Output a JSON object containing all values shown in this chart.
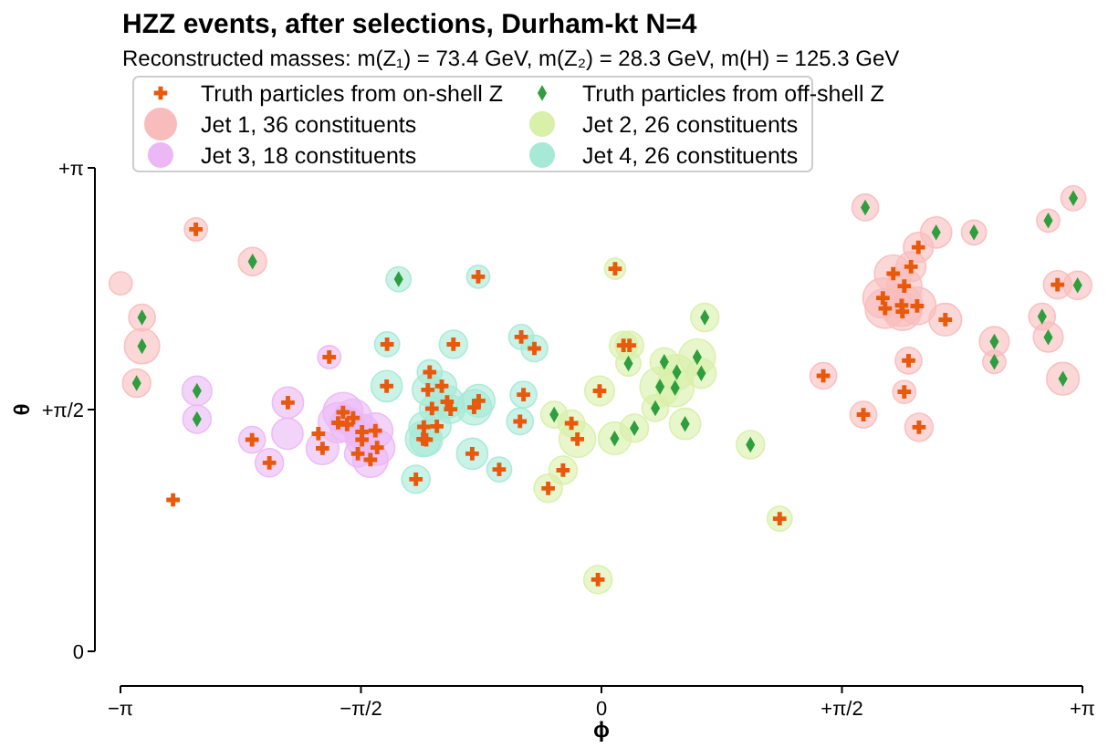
{
  "chart_data": {
    "type": "bubble",
    "title": "HZZ events, after selections, Durham-kt N=4",
    "subtitle": "Reconstructed masses: m(Z₁) = 73.4 GeV, m(Z₂) = 28.3 GeV, m(H) = 125.3 GeV",
    "xlabel": "ϕ",
    "ylabel": "θ",
    "xlim": [
      -3.1416,
      3.1416
    ],
    "ylim": [
      0,
      3.1416
    ],
    "xticks": [
      {
        "value": -3.1416,
        "label": "−π"
      },
      {
        "value": -1.5708,
        "label": "−π/2"
      },
      0,
      {
        "value": 1.5708,
        "label": "+π/2"
      },
      {
        "value": 3.1416,
        "label": "+π"
      }
    ],
    "yticks": [
      0,
      {
        "value": 1.5708,
        "label": "+π/2"
      },
      {
        "value": 3.1416,
        "label": "+π"
      }
    ],
    "legend": "top left",
    "grid": false,
    "series": [
      {
        "name": "Truth particles from on-shell Z",
        "type": "scatter",
        "marker": "cross",
        "color": "#e8590c",
        "x": [
          -2.649,
          1.449,
          1.711,
          2.07,
          2.022,
          1.906,
          1.978,
          1.838,
          1.853,
          1.961,
          2.062,
          1.966,
          2.246,
          2.006,
          1.978,
          2.074,
          2.979,
          0.089,
          0.144,
          0.183,
          -0.012,
          -0.196,
          -0.157,
          -0.251,
          -0.348,
          -0.023,
          1.164,
          -1.778,
          -2.048,
          -2.282,
          -2.169,
          -1.822,
          -1.688,
          -1.72,
          -1.622,
          -1.661,
          -1.564,
          -1.477,
          -1.564,
          -1.465,
          -1.591,
          -1.509,
          -0.805,
          -1.4,
          -0.967,
          -0.524,
          -0.438,
          -1.403,
          -1.122,
          -1.134,
          -1.043,
          -1.107,
          -1.008,
          -0.985,
          -0.832,
          -0.802,
          -0.509,
          -0.532,
          -1.16,
          -1.075,
          -1.165,
          -1.145,
          -0.844,
          -0.668,
          -1.212,
          -2.798,
          -1.849
        ],
        "values": [
          2.742,
          1.79,
          1.538,
          2.625,
          2.499,
          2.454,
          2.373,
          2.296,
          2.228,
          2.248,
          2.244,
          2.207,
          2.155,
          1.889,
          1.686,
          1.456,
          2.382,
          2.486,
          1.988,
          1.988,
          1.692,
          1.482,
          1.379,
          1.177,
          1.059,
          0.466,
          0.862,
          1.912,
          1.616,
          1.375,
          1.225,
          1.319,
          1.553,
          1.485,
          1.517,
          1.474,
          1.426,
          1.434,
          1.375,
          1.324,
          1.284,
          1.245,
          2.434,
          1.995,
          1.995,
          2.043,
          1.968,
          1.723,
          1.814,
          1.699,
          1.723,
          1.577,
          1.621,
          1.573,
          1.585,
          1.628,
          1.668,
          1.494,
          1.458,
          1.462,
          1.379,
          1.375,
          1.284,
          1.182,
          1.118,
          0.984,
          1.414
        ]
      },
      {
        "name": "Truth particles from off-shell Z",
        "type": "scatter",
        "marker": "diamond",
        "color": "#2e9e3e",
        "x": [
          -2.279,
          -3.001,
          -3.001,
          -3.036,
          1.723,
          2.186,
          2.433,
          2.566,
          2.566,
          3.082,
          2.918,
          3.11,
          2.878,
          2.918,
          3.014,
          0.176,
          0.675,
          -0.309,
          0.086,
          0.215,
          0.41,
          0.492,
          0.382,
          0.481,
          0.625,
          0.652,
          0.352,
          0.546,
          0.973,
          -2.642,
          -2.642,
          -1.325
        ],
        "values": [
          2.533,
          2.169,
          1.983,
          1.743,
          2.884,
          2.722,
          2.722,
          2.013,
          1.88,
          2.944,
          2.799,
          2.378,
          2.175,
          2.041,
          1.771,
          1.87,
          2.169,
          1.538,
          1.383,
          1.45,
          1.881,
          1.814,
          1.719,
          1.711,
          1.912,
          1.806,
          1.58,
          1.478,
          1.343,
          1.692,
          1.509,
          2.418
        ]
      },
      {
        "name": "Jet 1, 36 constituents",
        "color": "#f9bcbc",
        "x": [
          -2.649,
          -2.279,
          -3.14,
          -3.001,
          -3.001,
          -3.036,
          1.723,
          1.449,
          1.711,
          2.186,
          2.433,
          2.07,
          2.022,
          1.906,
          1.978,
          1.838,
          1.853,
          1.961,
          2.062,
          1.966,
          2.246,
          2.566,
          2.566,
          2.006,
          1.978,
          2.074,
          3.082,
          2.918,
          2.979,
          3.11,
          2.878,
          2.918,
          3.014
        ],
        "values": [
          2.742,
          2.533,
          2.391,
          2.169,
          1.983,
          1.743,
          2.884,
          1.79,
          1.538,
          2.722,
          2.722,
          2.625,
          2.499,
          2.454,
          2.373,
          2.296,
          2.228,
          2.248,
          2.244,
          2.207,
          2.155,
          2.013,
          1.88,
          1.889,
          1.686,
          1.456,
          2.944,
          2.799,
          2.382,
          2.378,
          2.175,
          2.041,
          1.771
        ],
        "sizes": [
          0.3,
          0.45,
          0.3,
          0.4,
          0.7,
          0.45,
          0.4,
          0.4,
          0.4,
          0.55,
          0.35,
          0.5,
          0.5,
          0.8,
          0.7,
          0.9,
          0.9,
          1,
          0.8,
          0.8,
          0.6,
          0.5,
          0.3,
          0.4,
          0.3,
          0.45,
          0.35,
          0.3,
          0.45,
          0.45,
          0.4,
          0.5,
          0.6
        ]
      },
      {
        "name": "Jet 2, 26 constituents",
        "color": "#d8f0a8",
        "x": [
          0.089,
          0.144,
          0.183,
          0.176,
          0.675,
          -0.012,
          -0.309,
          -0.196,
          -0.157,
          0.086,
          0.215,
          -0.251,
          -0.348,
          -0.023,
          0.41,
          0.492,
          0.382,
          0.481,
          0.625,
          0.652,
          0.352,
          0.546,
          0.973,
          1.164
        ],
        "values": [
          2.486,
          1.988,
          1.988,
          1.87,
          2.169,
          1.692,
          1.538,
          1.482,
          1.379,
          1.383,
          1.45,
          1.177,
          1.059,
          0.466,
          1.881,
          1.814,
          1.719,
          1.711,
          1.912,
          1.806,
          1.58,
          1.478,
          1.343,
          0.862
        ],
        "sizes": [
          0.25,
          0.45,
          0.45,
          0.35,
          0.45,
          0.5,
          0.4,
          0.4,
          0.75,
          0.6,
          0.45,
          0.45,
          0.45,
          0.45,
          0.45,
          0.7,
          0.9,
          0.8,
          0.75,
          0.5,
          0.4,
          0.55,
          0.45,
          0.35
        ]
      },
      {
        "name": "Jet 3, 18 constituents",
        "color": "#ebb8f5",
        "x": [
          -1.778,
          -2.642,
          -2.642,
          -2.048,
          -2.051,
          -2.282,
          -2.169,
          -1.822,
          -1.688,
          -1.72,
          -1.622,
          -1.661,
          -1.564,
          -1.477,
          -1.564,
          -1.465,
          -1.591,
          -1.509
        ],
        "values": [
          1.912,
          1.692,
          1.509,
          1.616,
          1.414,
          1.375,
          1.225,
          1.319,
          1.553,
          1.485,
          1.517,
          1.474,
          1.426,
          1.434,
          1.375,
          1.324,
          1.284,
          1.245
        ],
        "sizes": [
          0.3,
          0.5,
          0.45,
          0.55,
          0.55,
          0.4,
          0.45,
          0.6,
          0.9,
          0.9,
          0.8,
          0.7,
          0.7,
          0.7,
          0.6,
          0.7,
          0.4,
          0.7
        ]
      },
      {
        "name": "Jet 4, 26 constituents",
        "color": "#a6e9d6",
        "x": [
          -1.325,
          -0.805,
          -1.4,
          -0.967,
          -0.524,
          -0.438,
          -1.403,
          -1.122,
          -1.134,
          -1.043,
          -1.107,
          -1.008,
          -0.985,
          -0.832,
          -0.802,
          -0.509,
          -0.532,
          -1.16,
          -1.075,
          -1.165,
          -1.145,
          -0.844,
          -0.668,
          -1.212
        ],
        "values": [
          2.418,
          2.434,
          1.995,
          1.995,
          2.043,
          1.968,
          1.723,
          1.814,
          1.699,
          1.723,
          1.577,
          1.621,
          1.573,
          1.585,
          1.628,
          1.668,
          1.494,
          1.458,
          1.462,
          1.379,
          1.375,
          1.284,
          1.182,
          1.118
        ],
        "sizes": [
          0.35,
          0.3,
          0.35,
          0.45,
          0.35,
          0.4,
          0.55,
          0.35,
          0.55,
          0.5,
          0.35,
          0.6,
          0.45,
          0.7,
          0.6,
          0.4,
          0.4,
          0.5,
          0.45,
          0.7,
          0.6,
          0.55,
          0.35,
          0.45
        ]
      }
    ]
  }
}
